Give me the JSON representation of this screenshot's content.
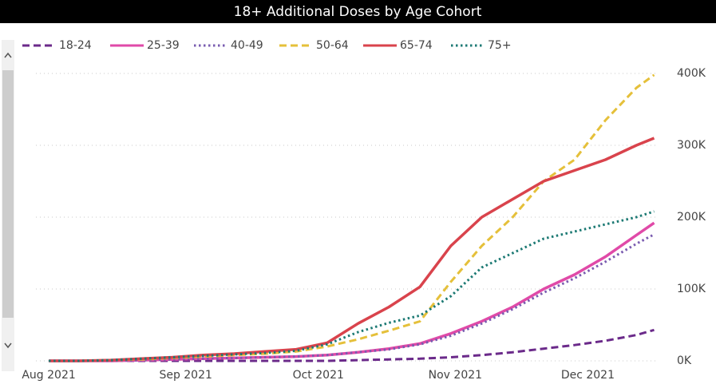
{
  "chart_data": {
    "type": "line",
    "title": "18+ Additional Doses by Age Cohort",
    "x": [
      "2021-08-01",
      "2021-08-08",
      "2021-08-15",
      "2021-08-22",
      "2021-08-29",
      "2021-09-05",
      "2021-09-12",
      "2021-09-19",
      "2021-09-26",
      "2021-10-03",
      "2021-10-10",
      "2021-10-17",
      "2021-10-24",
      "2021-10-31",
      "2021-11-07",
      "2021-11-14",
      "2021-11-21",
      "2021-11-28",
      "2021-12-05",
      "2021-12-12",
      "2021-12-16"
    ],
    "series": [
      {
        "name": "18-24",
        "color": "#6b2a8a",
        "dash": "dashed",
        "values": [
          0,
          0,
          0,
          0,
          0,
          0,
          0,
          0,
          0,
          0,
          1000,
          2000,
          3000,
          5000,
          8000,
          12000,
          17000,
          22000,
          28000,
          36000,
          43000
        ]
      },
      {
        "name": "25-39",
        "color": "#e04aa8",
        "dash": "solid",
        "values": [
          0,
          0,
          0,
          1000,
          2000,
          3000,
          4000,
          5000,
          6000,
          8000,
          12000,
          17000,
          24000,
          38000,
          55000,
          75000,
          100000,
          120000,
          145000,
          175000,
          192000
        ]
      },
      {
        "name": "40-49",
        "color": "#7a5cb0",
        "dash": "dotted",
        "values": [
          0,
          0,
          0,
          1000,
          2000,
          3000,
          4000,
          5000,
          6000,
          8000,
          12000,
          16000,
          23000,
          35000,
          52000,
          72000,
          95000,
          115000,
          138000,
          163000,
          176000
        ]
      },
      {
        "name": "50-64",
        "color": "#e5c03a",
        "dash": "dashed",
        "values": [
          0,
          0,
          1000,
          2000,
          4000,
          6000,
          8000,
          10000,
          13000,
          20000,
          30000,
          42000,
          55000,
          110000,
          160000,
          200000,
          250000,
          280000,
          335000,
          380000,
          398000
        ]
      },
      {
        "name": "65-74",
        "color": "#d9434c",
        "dash": "solid",
        "values": [
          0,
          0,
          1000,
          3000,
          5000,
          8000,
          10000,
          13000,
          16000,
          25000,
          52000,
          75000,
          103000,
          160000,
          200000,
          225000,
          250000,
          265000,
          280000,
          300000,
          310000
        ]
      },
      {
        "name": "75+",
        "color": "#1d7a74",
        "dash": "dotted",
        "values": [
          0,
          0,
          1000,
          3000,
          5000,
          7000,
          9000,
          11000,
          14000,
          23000,
          40000,
          53000,
          63000,
          90000,
          130000,
          150000,
          170000,
          180000,
          190000,
          200000,
          208000
        ]
      }
    ],
    "xlim": [
      "2021-07-30",
      "2021-12-17"
    ],
    "xticks": [
      {
        "value": "2021-08-01",
        "label": "Aug 2021"
      },
      {
        "value": "2021-09-01",
        "label": "Sep 2021"
      },
      {
        "value": "2021-10-01",
        "label": "Oct 2021"
      },
      {
        "value": "2021-11-01",
        "label": "Nov 2021"
      },
      {
        "value": "2021-12-01",
        "label": "Dec 2021"
      }
    ],
    "ylim": [
      0,
      400000
    ],
    "yticks": [
      {
        "value": 0,
        "label": "0K"
      },
      {
        "value": 100000,
        "label": "100K"
      },
      {
        "value": 200000,
        "label": "200K"
      },
      {
        "value": 300000,
        "label": "300K"
      },
      {
        "value": 400000,
        "label": "400K"
      }
    ],
    "grid": true,
    "legend": "top"
  }
}
